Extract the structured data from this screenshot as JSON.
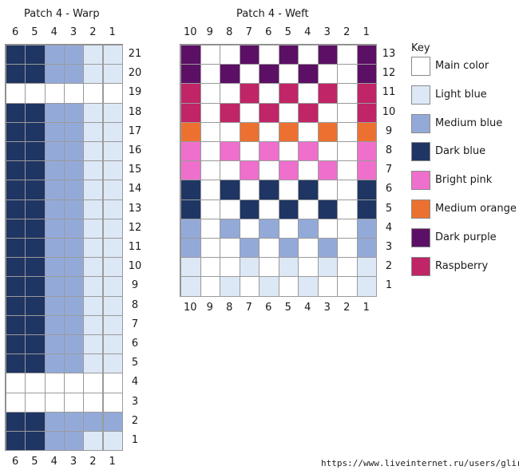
{
  "colors": {
    "M": "#ffffff",
    "L": "#dde8f6",
    "B": "#93aad9",
    "D": "#1f3563",
    "P": "#ee6fcc",
    "O": "#ec7130",
    "U": "#5c1065",
    "R": "#c02567"
  },
  "warp": {
    "title": "Patch 4 - Warp",
    "col_labels": [
      "6",
      "5",
      "4",
      "3",
      "2",
      "1"
    ],
    "rows": [
      {
        "label": "21",
        "cells": "DDBBLL"
      },
      {
        "label": "20",
        "cells": "DDBBLL"
      },
      {
        "label": "19",
        "cells": "MMMMMM"
      },
      {
        "label": "18",
        "cells": "DDBBLL"
      },
      {
        "label": "17",
        "cells": "DDBBLL"
      },
      {
        "label": "16",
        "cells": "DDBBLL"
      },
      {
        "label": "15",
        "cells": "DDBBLL"
      },
      {
        "label": "14",
        "cells": "DDBBLL"
      },
      {
        "label": "13",
        "cells": "DDBBLL"
      },
      {
        "label": "12",
        "cells": "DDBBLL"
      },
      {
        "label": "11",
        "cells": "DDBBLL"
      },
      {
        "label": "10",
        "cells": "DDBBLL"
      },
      {
        "label": "9",
        "cells": "DDBBLL"
      },
      {
        "label": "8",
        "cells": "DDBBLL"
      },
      {
        "label": "7",
        "cells": "DDBBLL"
      },
      {
        "label": "6",
        "cells": "DDBBLL"
      },
      {
        "label": "5",
        "cells": "DDBBLL"
      },
      {
        "label": "4",
        "cells": "MMMMMM"
      },
      {
        "label": "3",
        "cells": "MMMMMM"
      },
      {
        "label": "2",
        "cells": "DDBBBB"
      },
      {
        "label": "1",
        "cells": "DDBBLL"
      }
    ]
  },
  "weft": {
    "title": "Patch 4 - Weft",
    "col_labels": [
      "10",
      "9",
      "8",
      "7",
      "6",
      "5",
      "4",
      "3",
      "2",
      "1"
    ],
    "rows": [
      {
        "label": "13",
        "cells": "UMMUMUMUMU"
      },
      {
        "label": "12",
        "cells": "UMUMUMUMMU"
      },
      {
        "label": "11",
        "cells": "RMMRMRMRMR"
      },
      {
        "label": "10",
        "cells": "RMRMRMRMMR"
      },
      {
        "label": "9",
        "cells": "OMMOMOMOMO"
      },
      {
        "label": "8",
        "cells": "PMPMPMPMMP"
      },
      {
        "label": "7",
        "cells": "PMMPMPMPMP"
      },
      {
        "label": "6",
        "cells": "DMDMDMDMMD"
      },
      {
        "label": "5",
        "cells": "DMMDMDMDMD"
      },
      {
        "label": "4",
        "cells": "BMBMBMBMMB"
      },
      {
        "label": "3",
        "cells": "BMMBMBMBMB"
      },
      {
        "label": "2",
        "cells": "LMMLMLMLML"
      },
      {
        "label": "1",
        "cells": "LMLMLMLMML"
      }
    ]
  },
  "key": {
    "title": "Key",
    "items": [
      {
        "code": "M",
        "label": "Main color"
      },
      {
        "code": "L",
        "label": "Light blue"
      },
      {
        "code": "B",
        "label": "Medium blue"
      },
      {
        "code": "D",
        "label": "Dark blue"
      },
      {
        "code": "P",
        "label": "Bright pink"
      },
      {
        "code": "O",
        "label": "Medium orange"
      },
      {
        "code": "U",
        "label": "Dark purple"
      },
      {
        "code": "R",
        "label": "Raspberry"
      }
    ]
  },
  "watermark": "https://www.liveinternet.ru/users/glira/"
}
